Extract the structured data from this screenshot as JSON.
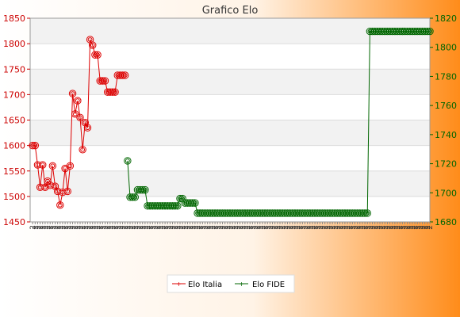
{
  "chart_data": {
    "type": "line",
    "title": "Grafico Elo",
    "x_tick_labels_note_free": "",
    "x_tick_labels": [
      "2",
      "2",
      "2",
      "2",
      "2",
      "2",
      "2",
      "2",
      "2",
      "2",
      "2",
      "2",
      "2",
      "2",
      "2",
      "2",
      "2",
      "2",
      "2",
      "2",
      "2",
      "2",
      "2",
      "2",
      "2",
      "2",
      "2",
      "2",
      "2",
      "2",
      "2",
      "2",
      "2",
      "2",
      "2",
      "2",
      "2",
      "2",
      "2",
      "2",
      "2",
      "2",
      "2",
      "2",
      "2",
      "2",
      "2",
      "2",
      "2",
      "2",
      "2",
      "2",
      "2",
      "2",
      "2",
      "2",
      "2",
      "2",
      "2",
      "2",
      "2",
      "2",
      "2",
      "2",
      "2",
      "2",
      "2",
      "2",
      "2",
      "2",
      "2",
      "2",
      "2",
      "2",
      "2",
      "2",
      "2",
      "2",
      "2",
      "2",
      "2",
      "2",
      "2",
      "2",
      "2",
      "2",
      "2",
      "2",
      "2",
      "2",
      "2",
      "2",
      "2",
      "2",
      "2",
      "2",
      "2",
      "2",
      "2",
      "2",
      "2",
      "2",
      "2",
      "2",
      "2",
      "2",
      "2",
      "2",
      "2",
      "2",
      "2",
      "2",
      "2",
      "2",
      "2",
      "2",
      "2",
      "2",
      "2",
      "2",
      "2",
      "2",
      "2",
      "2",
      "2",
      "2",
      "2",
      "2",
      "2",
      "2",
      "2",
      "2",
      "2",
      "2",
      "2",
      "2",
      "2",
      "2",
      "2",
      "2",
      "2",
      "2",
      "2",
      "2",
      "2",
      "2",
      "2",
      "2",
      "2",
      "2",
      "2",
      "2",
      "2",
      "2",
      "2",
      "2",
      "2",
      "2",
      "2",
      "2"
    ],
    "y_left": {
      "ticks": [
        1450,
        1500,
        1550,
        1600,
        1650,
        1700,
        1750,
        1800,
        1850
      ],
      "ylim": [
        1450,
        1850
      ],
      "color": "#cc0000"
    },
    "y_right": {
      "ticks": [
        1680,
        1700,
        1720,
        1740,
        1760,
        1780,
        1800,
        1820
      ],
      "ylim": [
        1680,
        1820
      ],
      "color": "#006600"
    },
    "series": [
      {
        "name": "Elo Italia",
        "axis": "left",
        "color": "#dd0000",
        "points": [
          [
            1,
            1600
          ],
          [
            2,
            1600
          ],
          [
            3,
            1562
          ],
          [
            4,
            1518
          ],
          [
            5,
            1562
          ],
          [
            6,
            1518
          ],
          [
            7,
            1530
          ],
          [
            8,
            1522
          ],
          [
            9,
            1560
          ],
          [
            10,
            1520
          ],
          [
            11,
            1510
          ],
          [
            12,
            1483
          ],
          [
            13,
            1508
          ],
          [
            14,
            1555
          ],
          [
            15,
            1510
          ],
          [
            16,
            1560
          ],
          [
            17,
            1702
          ],
          [
            18,
            1662
          ],
          [
            19,
            1688
          ],
          [
            20,
            1655
          ],
          [
            21,
            1592
          ],
          [
            22,
            1645
          ],
          [
            23,
            1635
          ],
          [
            24,
            1808
          ],
          [
            25,
            1797
          ],
          [
            26,
            1778
          ],
          [
            27,
            1778
          ],
          [
            28,
            1727
          ],
          [
            29,
            1727
          ],
          [
            30,
            1727
          ],
          [
            31,
            1705
          ],
          [
            32,
            1705
          ],
          [
            33,
            1705
          ],
          [
            34,
            1705
          ],
          [
            35,
            1738
          ],
          [
            36,
            1738
          ],
          [
            37,
            1738
          ],
          [
            38,
            1738
          ]
        ]
      },
      {
        "name": "Elo FIDE",
        "axis": "right",
        "color": "#006600",
        "points": [
          [
            39,
            1722
          ],
          [
            40,
            1697
          ],
          [
            41,
            1697
          ],
          [
            42,
            1697
          ],
          [
            43,
            1702
          ],
          [
            44,
            1702
          ],
          [
            45,
            1702
          ],
          [
            46,
            1702
          ],
          [
            47,
            1691
          ],
          [
            48,
            1691
          ],
          [
            49,
            1691
          ],
          [
            50,
            1691
          ],
          [
            51,
            1691
          ],
          [
            52,
            1691
          ],
          [
            53,
            1691
          ],
          [
            54,
            1691
          ],
          [
            55,
            1691
          ],
          [
            56,
            1691
          ],
          [
            57,
            1691
          ],
          [
            58,
            1691
          ],
          [
            59,
            1691
          ],
          [
            60,
            1696
          ],
          [
            61,
            1696
          ],
          [
            62,
            1693
          ],
          [
            63,
            1693
          ],
          [
            64,
            1693
          ],
          [
            65,
            1693
          ],
          [
            66,
            1693
          ],
          [
            67,
            1686
          ],
          [
            68,
            1686
          ],
          [
            69,
            1686
          ],
          [
            70,
            1686
          ],
          [
            71,
            1686
          ],
          [
            72,
            1686
          ],
          [
            73,
            1686
          ],
          [
            74,
            1686
          ],
          [
            75,
            1686
          ],
          [
            76,
            1686
          ],
          [
            77,
            1686
          ],
          [
            78,
            1686
          ],
          [
            79,
            1686
          ],
          [
            80,
            1686
          ],
          [
            81,
            1686
          ],
          [
            82,
            1686
          ],
          [
            83,
            1686
          ],
          [
            84,
            1686
          ],
          [
            85,
            1686
          ],
          [
            86,
            1686
          ],
          [
            87,
            1686
          ],
          [
            88,
            1686
          ],
          [
            89,
            1686
          ],
          [
            90,
            1686
          ],
          [
            91,
            1686
          ],
          [
            92,
            1686
          ],
          [
            93,
            1686
          ],
          [
            94,
            1686
          ],
          [
            95,
            1686
          ],
          [
            96,
            1686
          ],
          [
            97,
            1686
          ],
          [
            98,
            1686
          ],
          [
            99,
            1686
          ],
          [
            100,
            1686
          ],
          [
            101,
            1686
          ],
          [
            102,
            1686
          ],
          [
            103,
            1686
          ],
          [
            104,
            1686
          ],
          [
            105,
            1686
          ],
          [
            106,
            1686
          ],
          [
            107,
            1686
          ],
          [
            108,
            1686
          ],
          [
            109,
            1686
          ],
          [
            110,
            1686
          ],
          [
            111,
            1686
          ],
          [
            112,
            1686
          ],
          [
            113,
            1686
          ],
          [
            114,
            1686
          ],
          [
            115,
            1686
          ],
          [
            116,
            1686
          ],
          [
            117,
            1686
          ],
          [
            118,
            1686
          ],
          [
            119,
            1686
          ],
          [
            120,
            1686
          ],
          [
            121,
            1686
          ],
          [
            122,
            1686
          ],
          [
            123,
            1686
          ],
          [
            124,
            1686
          ],
          [
            125,
            1686
          ],
          [
            126,
            1686
          ],
          [
            127,
            1686
          ],
          [
            128,
            1686
          ],
          [
            129,
            1686
          ],
          [
            130,
            1686
          ],
          [
            131,
            1686
          ],
          [
            132,
            1686
          ],
          [
            133,
            1686
          ],
          [
            134,
            1686
          ],
          [
            135,
            1686
          ],
          [
            136,
            1811
          ],
          [
            137,
            1811
          ],
          [
            138,
            1811
          ],
          [
            139,
            1811
          ],
          [
            140,
            1811
          ],
          [
            141,
            1811
          ],
          [
            142,
            1811
          ],
          [
            143,
            1811
          ],
          [
            144,
            1811
          ],
          [
            145,
            1811
          ],
          [
            146,
            1811
          ],
          [
            147,
            1811
          ],
          [
            148,
            1811
          ],
          [
            149,
            1811
          ],
          [
            150,
            1811
          ],
          [
            151,
            1811
          ],
          [
            152,
            1811
          ],
          [
            153,
            1811
          ],
          [
            154,
            1811
          ],
          [
            155,
            1811
          ],
          [
            156,
            1811
          ],
          [
            157,
            1811
          ],
          [
            158,
            1811
          ],
          [
            159,
            1811
          ],
          [
            160,
            1811
          ]
        ]
      }
    ],
    "xlim": [
      0,
      160
    ],
    "grid": true,
    "legend": "bottom-center",
    "background_gradient": [
      "#ffffff",
      "#ff8c1a"
    ],
    "band_colors": [
      "#f2f2f2",
      "#ffffff"
    ]
  }
}
